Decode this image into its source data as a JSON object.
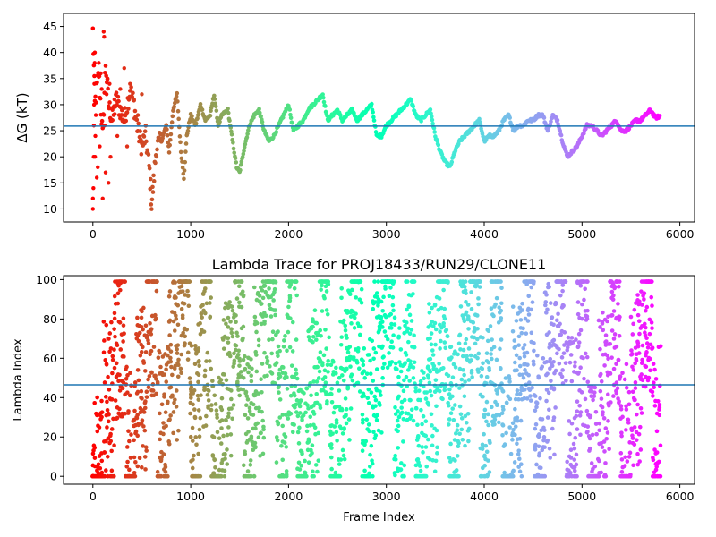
{
  "chart_data": [
    {
      "type": "scatter",
      "title": "",
      "xlabel": "",
      "ylabel": "ΔG (kT)",
      "xlim": [
        -300,
        6150
      ],
      "ylim": [
        7.5,
        47.5
      ],
      "xticks": [
        0,
        1000,
        2000,
        3000,
        4000,
        5000,
        6000
      ],
      "yticks": [
        10,
        15,
        20,
        25,
        30,
        35,
        40,
        45
      ],
      "hline": 25.9,
      "colormap": "rainbow",
      "series": [
        {
          "x_start": 0,
          "x_end": 5800,
          "trace": [
            [
              0,
              44
            ],
            [
              20,
              30
            ],
            [
              60,
              36
            ],
            [
              100,
              24
            ],
            [
              130,
              38
            ],
            [
              160,
              30
            ],
            [
              200,
              27
            ],
            [
              240,
              31
            ],
            [
              280,
              29
            ],
            [
              320,
              27
            ],
            [
              380,
              33
            ],
            [
              420,
              30
            ],
            [
              460,
              25
            ],
            [
              500,
              22
            ],
            [
              540,
              24
            ],
            [
              580,
              17
            ],
            [
              600,
              11
            ],
            [
              620,
              15
            ],
            [
              650,
              22
            ],
            [
              700,
              23
            ],
            [
              750,
              26
            ],
            [
              780,
              21
            ],
            [
              820,
              29
            ],
            [
              860,
              32
            ],
            [
              900,
              21
            ],
            [
              930,
              16
            ],
            [
              960,
              24
            ],
            [
              1000,
              28
            ],
            [
              1050,
              26
            ],
            [
              1100,
              30
            ],
            [
              1150,
              27
            ],
            [
              1200,
              28
            ],
            [
              1240,
              32
            ],
            [
              1280,
              26
            ],
            [
              1320,
              28
            ],
            [
              1380,
              29
            ],
            [
              1420,
              24
            ],
            [
              1470,
              18
            ],
            [
              1500,
              17
            ],
            [
              1550,
              22
            ],
            [
              1600,
              26
            ],
            [
              1650,
              28
            ],
            [
              1700,
              29
            ],
            [
              1750,
              25
            ],
            [
              1800,
              23
            ],
            [
              1850,
              24
            ],
            [
              1900,
              26
            ],
            [
              1950,
              28
            ],
            [
              2000,
              30
            ],
            [
              2050,
              25
            ],
            [
              2100,
              26
            ],
            [
              2150,
              27
            ],
            [
              2200,
              29
            ],
            [
              2250,
              30
            ],
            [
              2300,
              31
            ],
            [
              2350,
              32
            ],
            [
              2400,
              27
            ],
            [
              2450,
              28
            ],
            [
              2500,
              29
            ],
            [
              2550,
              27
            ],
            [
              2600,
              28
            ],
            [
              2650,
              29
            ],
            [
              2700,
              27
            ],
            [
              2750,
              28
            ],
            [
              2800,
              29
            ],
            [
              2850,
              30
            ],
            [
              2900,
              24
            ],
            [
              2950,
              24
            ],
            [
              3000,
              26
            ],
            [
              3050,
              27
            ],
            [
              3100,
              28
            ],
            [
              3150,
              29
            ],
            [
              3200,
              30
            ],
            [
              3250,
              31
            ],
            [
              3300,
              28
            ],
            [
              3350,
              27
            ],
            [
              3400,
              28
            ],
            [
              3450,
              29
            ],
            [
              3500,
              24
            ],
            [
              3550,
              21
            ],
            [
              3600,
              19
            ],
            [
              3650,
              18
            ],
            [
              3700,
              21
            ],
            [
              3750,
              23
            ],
            [
              3800,
              24
            ],
            [
              3850,
              25
            ],
            [
              3900,
              26
            ],
            [
              3950,
              27
            ],
            [
              4000,
              23
            ],
            [
              4050,
              24
            ],
            [
              4100,
              24
            ],
            [
              4150,
              25
            ],
            [
              4200,
              27
            ],
            [
              4250,
              28
            ],
            [
              4300,
              25
            ],
            [
              4350,
              26
            ],
            [
              4400,
              26
            ],
            [
              4450,
              27
            ],
            [
              4500,
              27
            ],
            [
              4550,
              28
            ],
            [
              4600,
              28
            ],
            [
              4650,
              25
            ],
            [
              4700,
              28
            ],
            [
              4750,
              27
            ],
            [
              4800,
              23
            ],
            [
              4850,
              20
            ],
            [
              4900,
              21
            ],
            [
              4950,
              22
            ],
            [
              5000,
              24
            ],
            [
              5050,
              26
            ],
            [
              5100,
              26
            ],
            [
              5150,
              25
            ],
            [
              5200,
              24
            ],
            [
              5250,
              25
            ],
            [
              5300,
              26
            ],
            [
              5350,
              27
            ],
            [
              5400,
              25
            ],
            [
              5450,
              25
            ],
            [
              5500,
              26
            ],
            [
              5550,
              27
            ],
            [
              5600,
              27
            ],
            [
              5650,
              28
            ],
            [
              5700,
              29
            ],
            [
              5750,
              27.5
            ],
            [
              5800,
              27.8
            ]
          ],
          "early_scatter": [
            [
              0,
              10
            ],
            [
              0,
              12
            ],
            [
              5,
              14
            ],
            [
              8,
              20
            ],
            [
              10,
              26
            ],
            [
              12,
              30
            ],
            [
              15,
              34
            ],
            [
              18,
              38
            ],
            [
              20,
              40
            ],
            [
              22,
              20
            ],
            [
              25,
              24
            ],
            [
              30,
              28
            ],
            [
              40,
              16
            ],
            [
              50,
              18
            ],
            [
              60,
              38
            ],
            [
              70,
              22
            ],
            [
              80,
              36
            ],
            [
              90,
              33
            ],
            [
              100,
              12
            ],
            [
              110,
              44
            ],
            [
              115,
              43
            ],
            [
              120,
              26
            ],
            [
              130,
              17
            ],
            [
              140,
              32
            ],
            [
              150,
              35
            ],
            [
              160,
              15
            ],
            [
              170,
              34
            ],
            [
              180,
              20
            ],
            [
              200,
              29
            ],
            [
              220,
              31
            ],
            [
              250,
              24
            ],
            [
              280,
              33
            ],
            [
              300,
              28
            ],
            [
              320,
              37
            ],
            [
              350,
              22
            ],
            [
              380,
              34
            ],
            [
              420,
              31
            ],
            [
              460,
              28
            ],
            [
              500,
              32
            ]
          ]
        }
      ]
    },
    {
      "type": "scatter",
      "title": "Lambda Trace for PROJ18433/RUN29/CLONE11",
      "xlabel": "Frame Index",
      "ylabel": "Lambda Index",
      "xlim": [
        -300,
        6150
      ],
      "ylim": [
        -4,
        102
      ],
      "xticks": [
        0,
        1000,
        2000,
        3000,
        4000,
        5000,
        6000
      ],
      "yticks": [
        0,
        20,
        40,
        60,
        80,
        100
      ],
      "hline": 46.5,
      "colormap": "rainbow",
      "series": [
        {
          "x_start": 0,
          "x_end": 5800,
          "points": 3000,
          "ymin": 0,
          "ymax": 99
        }
      ]
    }
  ]
}
